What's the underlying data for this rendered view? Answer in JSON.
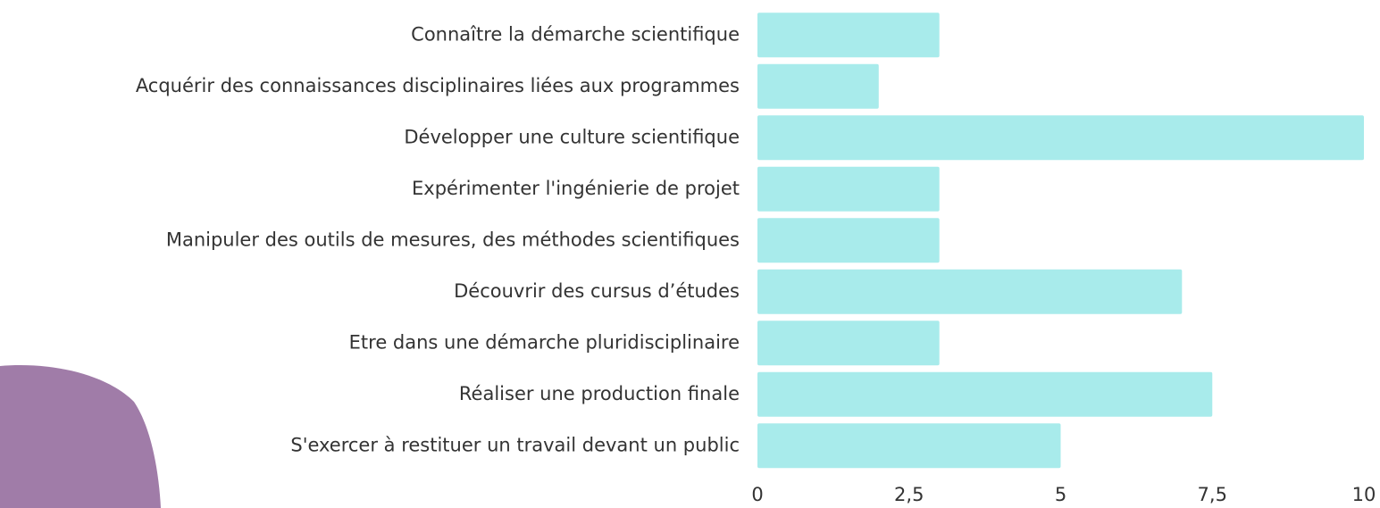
{
  "chart_data": {
    "type": "bar",
    "orientation": "horizontal",
    "categories": [
      "Connaître la démarche scientifique",
      "Acquérir des connaissances disciplinaires liées aux programmes",
      "Développer une culture scientifique",
      "Expérimenter l'ingénierie de projet",
      "Manipuler des outils de mesures, des méthodes scientifiques",
      "Découvrir des cursus d’études",
      "Etre dans une démarche pluridisciplinaire",
      "Réaliser une production finale",
      "S'exercer à restituer un travail devant un public"
    ],
    "values": [
      3,
      2,
      10,
      3,
      3,
      7,
      3,
      7.5,
      5
    ],
    "color": "#a8ebeb",
    "xlim": [
      0,
      10
    ],
    "xticks": [
      0,
      {
        "value": 2.5,
        "label": "2,5"
      },
      5,
      {
        "value": 7.5,
        "label": "7,5"
      },
      10
    ],
    "grid": false
  }
}
